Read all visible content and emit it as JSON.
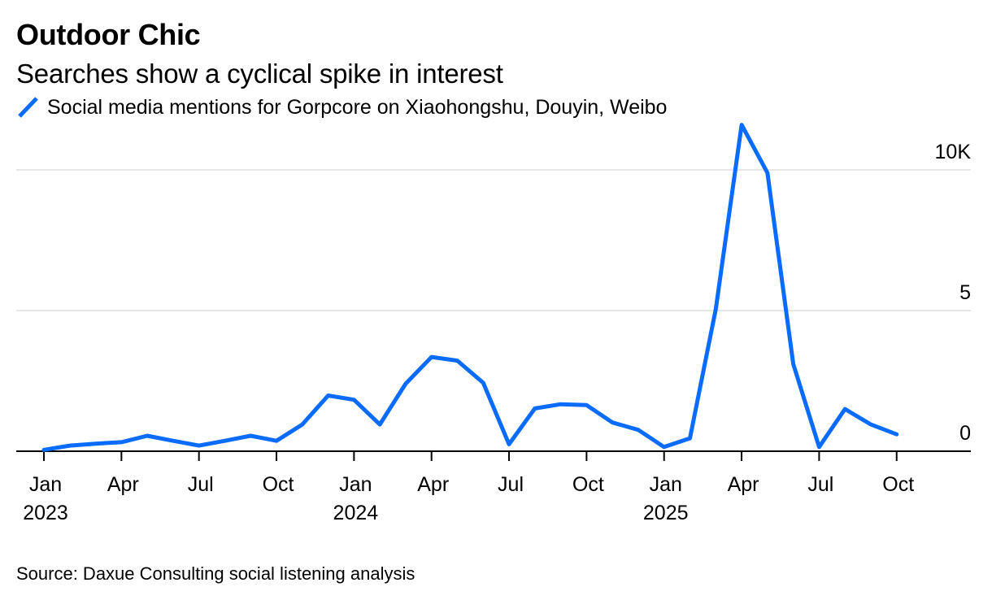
{
  "title": "Outdoor Chic",
  "subtitle": "Searches show a cyclical spike in interest",
  "source": "Source: Daxue Consulting social listening analysis",
  "colors": {
    "series": "#0a6cff",
    "grid": "#e6e6e6",
    "axis": "#000000"
  },
  "chart_data": {
    "type": "line",
    "title": "Outdoor Chic",
    "subtitle": "Searches show a cyclical spike in interest",
    "ylim": [
      0,
      10
    ],
    "y_unit": "K",
    "grid": true,
    "legend_position": "top-left",
    "y_ticks": [
      {
        "value": 0,
        "label": "0"
      },
      {
        "value": 5,
        "label": "5"
      },
      {
        "value": 10,
        "label": "10K"
      }
    ],
    "x_ticks": [
      {
        "date": "2023-01",
        "label": "Jan",
        "year": "2023"
      },
      {
        "date": "2023-04",
        "label": "Apr",
        "year": ""
      },
      {
        "date": "2023-07",
        "label": "Jul",
        "year": ""
      },
      {
        "date": "2023-10",
        "label": "Oct",
        "year": ""
      },
      {
        "date": "2024-01",
        "label": "Jan",
        "year": "2024"
      },
      {
        "date": "2024-04",
        "label": "Apr",
        "year": ""
      },
      {
        "date": "2024-07",
        "label": "Jul",
        "year": ""
      },
      {
        "date": "2024-10",
        "label": "Oct",
        "year": ""
      },
      {
        "date": "2025-01",
        "label": "Jan",
        "year": "2025"
      },
      {
        "date": "2025-04",
        "label": "Apr",
        "year": ""
      },
      {
        "date": "2025-07",
        "label": "Jul",
        "year": ""
      },
      {
        "date": "2025-10",
        "label": "Oct",
        "year": ""
      }
    ],
    "x_range": [
      "2022-12",
      "2025-12"
    ],
    "series": [
      {
        "name": "Social media mentions for Gorpcore on Xiaohongshu, Douyin, Weibo",
        "points": [
          {
            "x": "2023-01",
            "y": 0.05
          },
          {
            "x": "2023-02",
            "y": 0.2
          },
          {
            "x": "2023-03",
            "y": 0.27
          },
          {
            "x": "2023-04",
            "y": 0.32
          },
          {
            "x": "2023-05",
            "y": 0.55
          },
          {
            "x": "2023-06",
            "y": 0.37
          },
          {
            "x": "2023-07",
            "y": 0.2
          },
          {
            "x": "2023-08",
            "y": 0.37
          },
          {
            "x": "2023-09",
            "y": 0.55
          },
          {
            "x": "2023-10",
            "y": 0.37
          },
          {
            "x": "2023-11",
            "y": 0.95
          },
          {
            "x": "2023-12",
            "y": 1.98
          },
          {
            "x": "2024-01",
            "y": 1.83
          },
          {
            "x": "2024-02",
            "y": 0.95
          },
          {
            "x": "2024-03",
            "y": 2.4
          },
          {
            "x": "2024-04",
            "y": 3.35
          },
          {
            "x": "2024-05",
            "y": 3.22
          },
          {
            "x": "2024-06",
            "y": 2.43
          },
          {
            "x": "2024-07",
            "y": 0.25
          },
          {
            "x": "2024-08",
            "y": 1.52
          },
          {
            "x": "2024-09",
            "y": 1.67
          },
          {
            "x": "2024-10",
            "y": 1.64
          },
          {
            "x": "2024-11",
            "y": 1.02
          },
          {
            "x": "2024-12",
            "y": 0.76
          },
          {
            "x": "2025-01",
            "y": 0.15
          },
          {
            "x": "2025-02",
            "y": 0.46
          },
          {
            "x": "2025-03",
            "y": 5.05
          },
          {
            "x": "2025-04",
            "y": 11.6
          },
          {
            "x": "2025-05",
            "y": 9.9
          },
          {
            "x": "2025-06",
            "y": 3.1
          },
          {
            "x": "2025-07",
            "y": 0.15
          },
          {
            "x": "2025-08",
            "y": 1.5
          },
          {
            "x": "2025-09",
            "y": 0.95
          },
          {
            "x": "2025-10",
            "y": 0.6
          }
        ]
      }
    ]
  }
}
